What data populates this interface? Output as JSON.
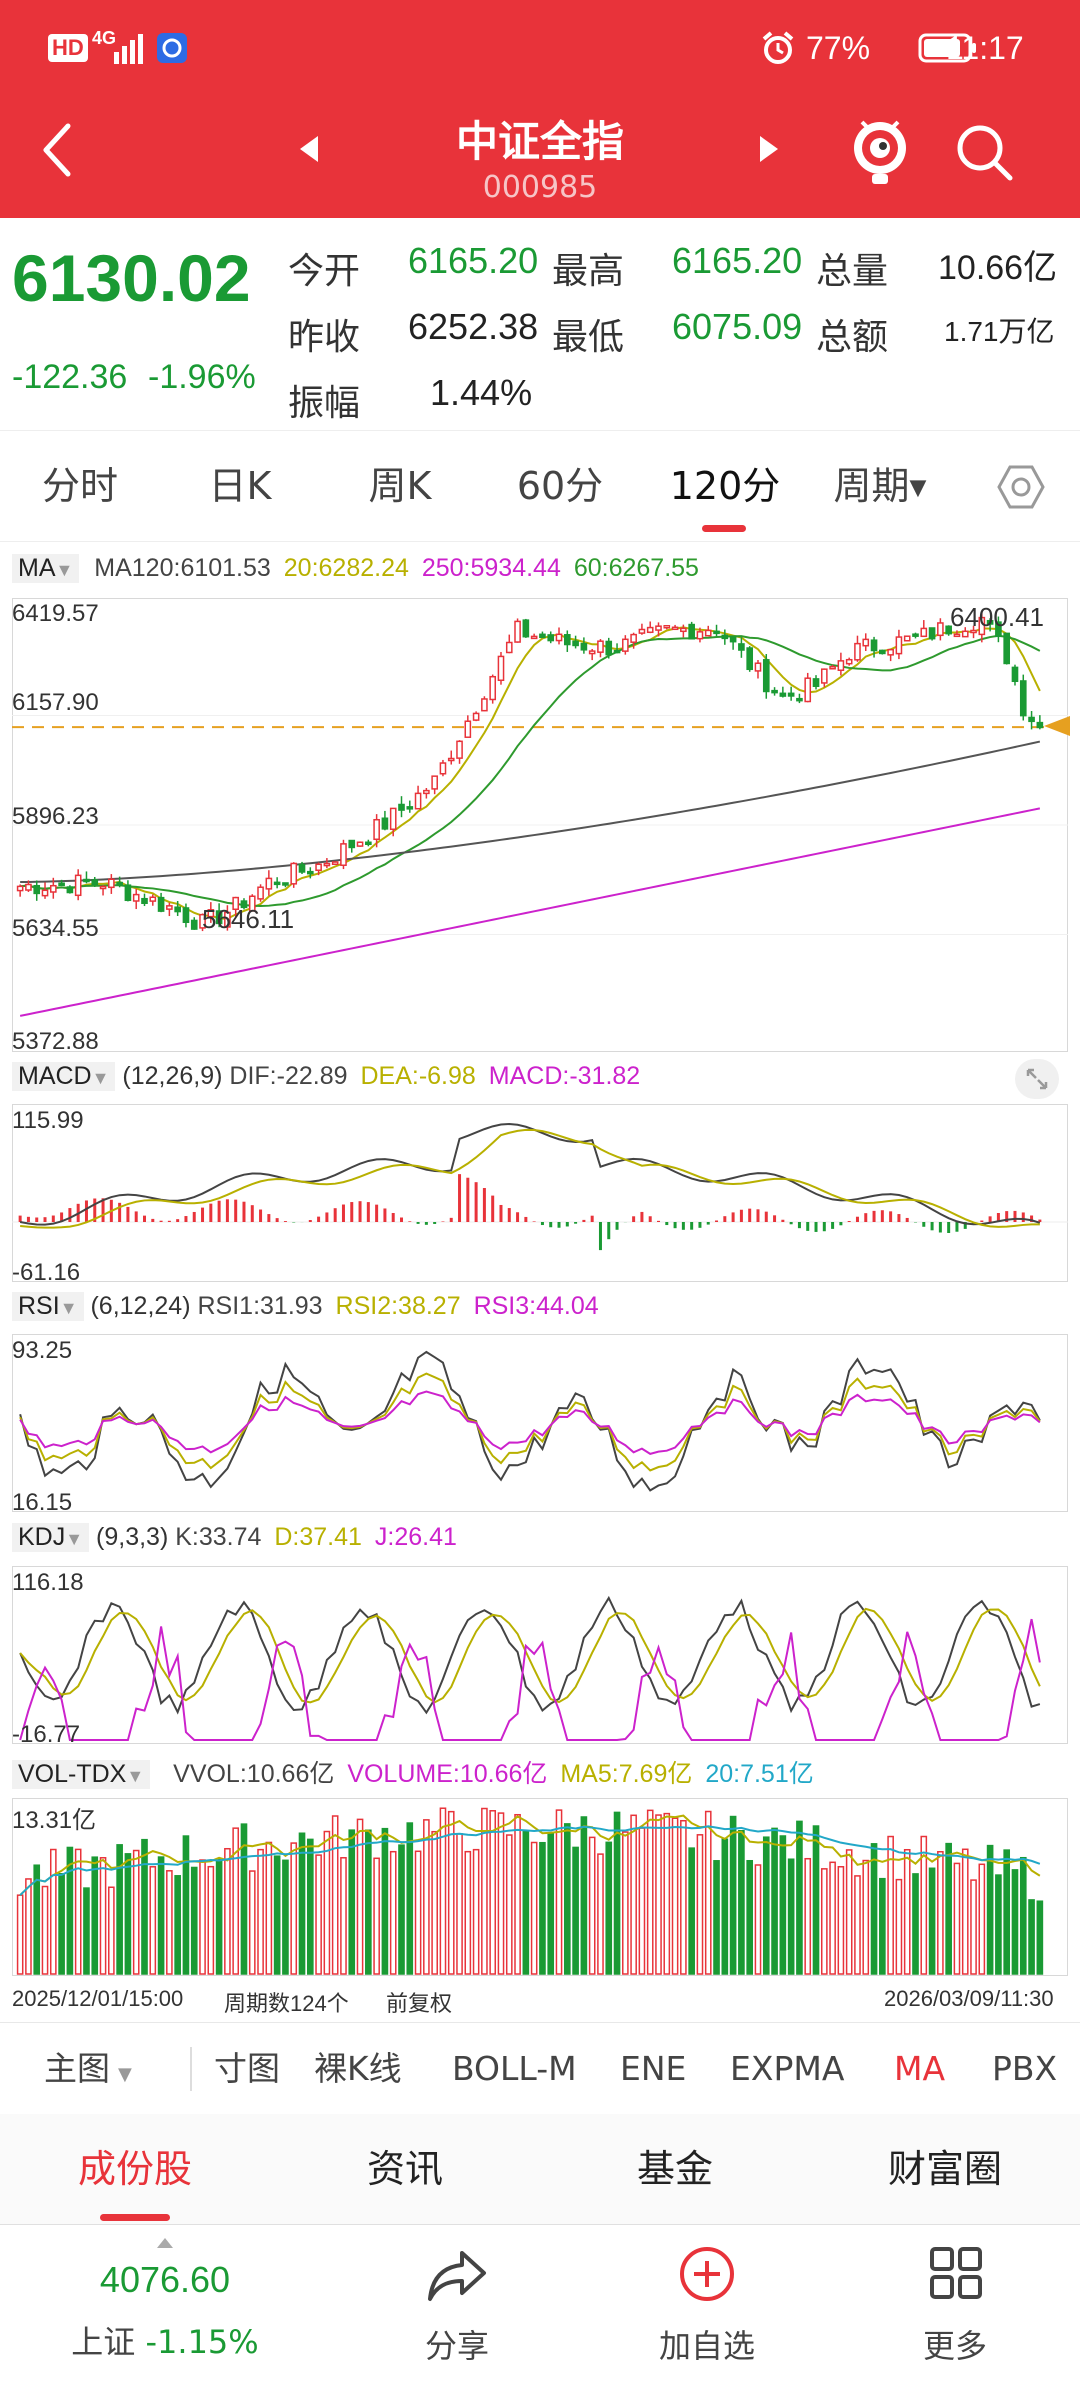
{
  "status_bar": {
    "left_badges": [
      "HD",
      "4G"
    ],
    "battery": "77%",
    "time": "11:17"
  },
  "header": {
    "title": "中证全指",
    "code": "000985"
  },
  "quote": {
    "price": "6130.02",
    "change": "-122.36",
    "change_pct": "-1.96%",
    "open_label": "今开",
    "open": "6165.20",
    "high_label": "最高",
    "high": "6165.20",
    "volume_label": "总量",
    "volume": "10.66亿",
    "prev_label": "昨收",
    "prev": "6252.38",
    "low_label": "最低",
    "low": "6075.09",
    "amount_label": "总额",
    "amount": "1.71万亿",
    "amp_label": "振幅",
    "amp": "1.44%"
  },
  "period_tabs": [
    "分时",
    "日K",
    "周K",
    "60分",
    "120分",
    "周期"
  ],
  "active_tab": "120分",
  "main_chart": {
    "indicator_name": "MA",
    "ma120": "MA120:6101.53",
    "ma20": "20:6282.24",
    "ma250": "250:5934.44",
    "ma60": "60:6267.55",
    "y_labels": [
      "6419.57",
      "6157.90",
      "5896.23",
      "5634.55",
      "5372.88"
    ],
    "high_mark": "6400.41",
    "low_mark": "5646.11",
    "colors": {
      "up": "#e8333a",
      "down": "#1a9a34",
      "ma20": "#b8b000",
      "ma60": "#2e9a2e",
      "ma120": "#555555",
      "ma250": "#cc22cc",
      "price_line": "#e6a020"
    }
  },
  "macd": {
    "name": "MACD",
    "params": "(12,26,9)",
    "dif": "DIF:-22.89",
    "dea": "DEA:-6.98",
    "macd": "MACD:-31.82",
    "y_top": "115.99",
    "y_bottom": "-61.16"
  },
  "rsi": {
    "name": "RSI",
    "params": "(6,12,24)",
    "rsi1": "RSI1:31.93",
    "rsi2": "RSI2:38.27",
    "rsi3": "RSI3:44.04",
    "y_top": "93.25",
    "y_bottom": "16.15"
  },
  "kdj": {
    "name": "KDJ",
    "params": "(9,3,3)",
    "k": "K:33.74",
    "d": "D:37.41",
    "j": "J:26.41",
    "y_top": "116.18",
    "y_bottom": "-16.77"
  },
  "vol": {
    "name": "VOL-TDX",
    "vvol": "VVOL:10.66亿",
    "volume": "VOLUME:10.66亿",
    "ma5": "MA5:7.69亿",
    "ma20": "20:7.51亿",
    "y_top": "13.31亿"
  },
  "footer_axis": {
    "start": "2025/12/01/15:00",
    "count": "周期数124个",
    "adjust": "前复权",
    "end": "2026/03/09/11:30"
  },
  "toolbar": [
    "主图",
    "寸图",
    "裸K线",
    "BOLL-M",
    "ENE",
    "EXPMA",
    "MA",
    "PBX"
  ],
  "toolbar_active": "MA",
  "sub_tabs": [
    "成份股",
    "资讯",
    "基金",
    "财富圈"
  ],
  "bottom_nav": {
    "index_value": "4076.60",
    "index_name": "上证",
    "index_change": "-1.15%",
    "share": "分享",
    "add": "加自选",
    "more": "更多"
  }
}
